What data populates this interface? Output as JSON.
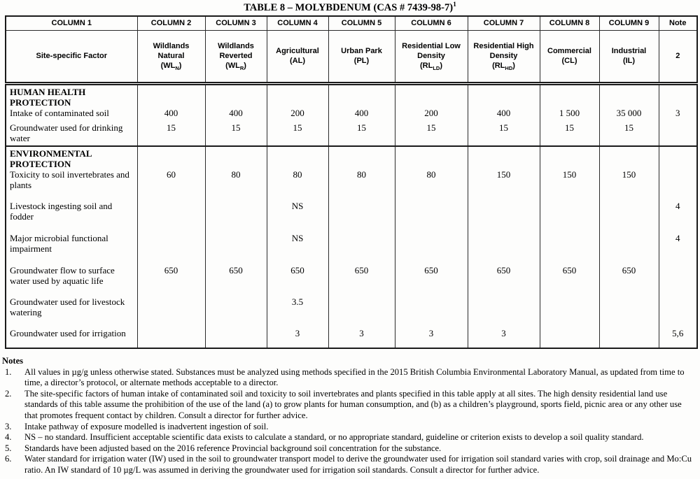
{
  "title": {
    "text": "TABLE 8 – MOLYBDENUM (CAS # 7439-98-7)",
    "superscript": "1"
  },
  "table": {
    "columns": [
      {
        "header": "COLUMN 1",
        "sub": "Site-specific Factor"
      },
      {
        "header": "COLUMN 2",
        "name": "Wildlands Natural",
        "abbr": "WL_N"
      },
      {
        "header": "COLUMN 3",
        "name": "Wildlands Reverted",
        "abbr": "WL_R"
      },
      {
        "header": "COLUMN 4",
        "name": "Agricultural",
        "abbr": "AL"
      },
      {
        "header": "COLUMN 5",
        "name": "Urban Park",
        "abbr": "PL"
      },
      {
        "header": "COLUMN 6",
        "name": "Residential Low Density",
        "abbr": "RL_LD"
      },
      {
        "header": "COLUMN 7",
        "name": "Residential High Density",
        "abbr": "RL_HD"
      },
      {
        "header": "COLUMN 8",
        "name": "Commercial",
        "abbr": "CL"
      },
      {
        "header": "COLUMN 9",
        "name": "Industrial",
        "abbr": "IL"
      },
      {
        "header": "Note",
        "sub": "2"
      }
    ],
    "sections": [
      {
        "title": "HUMAN HEALTH PROTECTION",
        "rows": [
          {
            "factor": "Intake of contaminated soil",
            "values": [
              "400",
              "400",
              "200",
              "400",
              "200",
              "400",
              "1 500",
              "35 000"
            ],
            "note": "3"
          },
          {
            "factor": "Groundwater used for drinking water",
            "values": [
              "15",
              "15",
              "15",
              "15",
              "15",
              "15",
              "15",
              "15"
            ],
            "note": ""
          }
        ]
      },
      {
        "title": "ENVIRONMENTAL PROTECTION",
        "rows": [
          {
            "factor": "Toxicity to soil invertebrates and plants",
            "values": [
              "60",
              "80",
              "80",
              "80",
              "80",
              "150",
              "150",
              "150"
            ],
            "note": ""
          },
          {
            "factor": "Livestock ingesting soil and fodder",
            "values": [
              "",
              "",
              "NS",
              "",
              "",
              "",
              "",
              ""
            ],
            "note": "4"
          },
          {
            "factor": "Major microbial functional impairment",
            "values": [
              "",
              "",
              "NS",
              "",
              "",
              "",
              "",
              ""
            ],
            "note": "4"
          },
          {
            "factor": "Groundwater flow to surface water used by aquatic life",
            "values": [
              "650",
              "650",
              "650",
              "650",
              "650",
              "650",
              "650",
              "650"
            ],
            "note": ""
          },
          {
            "factor": "Groundwater used for livestock watering",
            "values": [
              "",
              "",
              "3.5",
              "",
              "",
              "",
              "",
              ""
            ],
            "note": ""
          },
          {
            "factor": "Groundwater used for irrigation",
            "values": [
              "",
              "",
              "3",
              "3",
              "3",
              "3",
              "",
              ""
            ],
            "note": "5,6"
          }
        ]
      }
    ]
  },
  "notes": {
    "heading": "Notes",
    "items": [
      {
        "num": "1.",
        "text": "All values in µg/g unless otherwise stated.  Substances must be analyzed using methods specified in the 2015 British Columbia Environmental Laboratory Manual, as updated from time to time, a director’s protocol, or alternate methods acceptable to a director."
      },
      {
        "num": "2.",
        "text": "The site-specific factors of human intake of contaminated soil and toxicity to soil invertebrates and plants specified in this table apply at all sites.  The high density residential land use standards of this table assume the prohibition of the use of the land (a) to grow plants for human consumption, and (b) as a children’s playground, sports field, picnic area or any other use that promotes frequent contact by children.  Consult a director for further advice."
      },
      {
        "num": "3.",
        "text": "Intake pathway of exposure modelled is inadvertent ingestion of soil."
      },
      {
        "num": "4.",
        "text": "NS – no standard. Insufficient acceptable scientific data exists to calculate a standard, or no appropriate standard, guideline or criterion exists to develop a soil quality standard."
      },
      {
        "num": "5.",
        "text": "Standards have been adjusted based on the 2016 reference Provincial background soil concentration for the substance."
      },
      {
        "num": "6.",
        "text": "Water standard for irrigation water (IW) used in the soil to groundwater transport model to derive the groundwater used for irrigation soil standard varies with crop, soil drainage and Mo:Cu ratio. An IW standard of 10 µg/L was assumed in deriving the groundwater used for irrigation soil standards.  Consult a director for further advice."
      }
    ]
  },
  "colors": {
    "ink": "#1a1a1a",
    "paper": "#fdfdfc"
  }
}
